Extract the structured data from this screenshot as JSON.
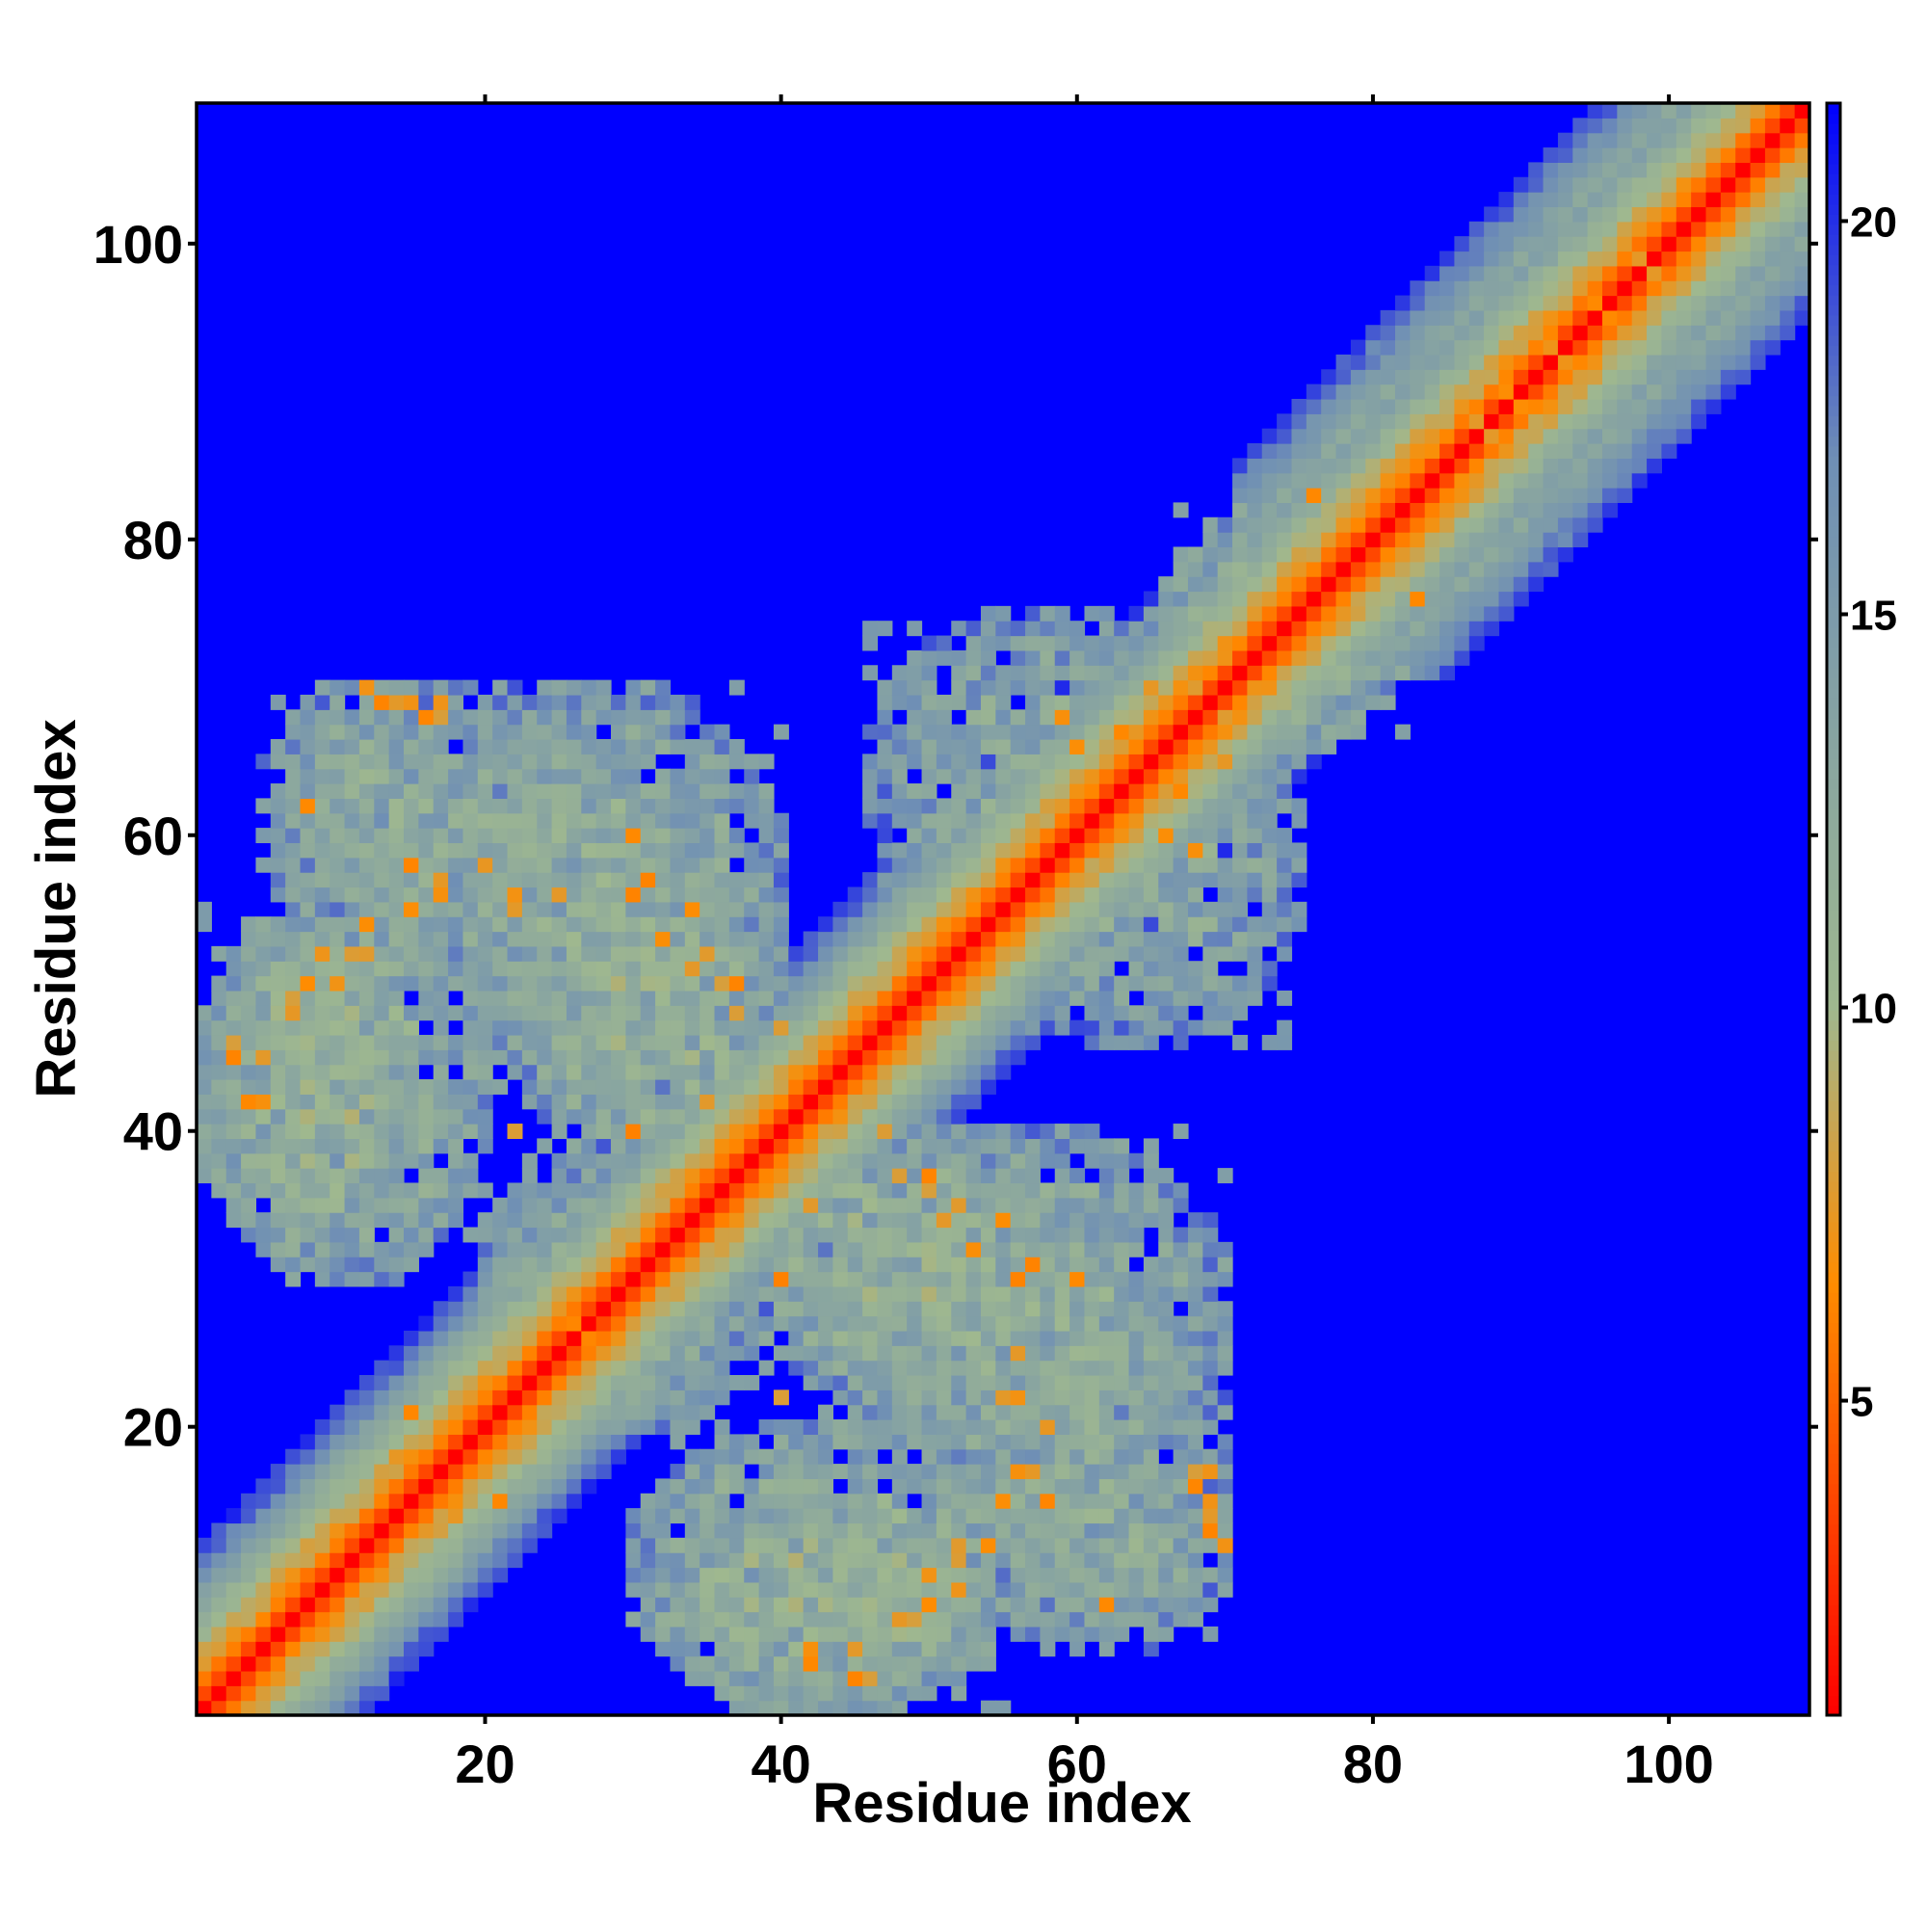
{
  "chart_data": {
    "type": "heatmap",
    "title": "",
    "xlabel": "Residue index",
    "ylabel": "Residue index",
    "xlim": [
      1,
      109
    ],
    "ylim": [
      1,
      109
    ],
    "x_ticks": [
      20,
      40,
      60,
      80,
      100
    ],
    "y_ticks": [
      20,
      40,
      60,
      80,
      100
    ],
    "n_residues": 109,
    "colorbar": {
      "range": [
        1,
        21.5
      ],
      "ticks": [
        5,
        10,
        15,
        20
      ],
      "colors": [
        "#ff0000",
        "#ff8c00",
        "#9fb88f",
        "#6f8fb5",
        "#0000ff"
      ],
      "stops": [
        1,
        6.5,
        10,
        17,
        21.5
      ]
    },
    "matrix_description": "Symmetric residue-residue distance map; distances near 1 on the diagonal rising to the 21.5 cap (blue) far from it.",
    "contact_regions": [
      {
        "x": [
          1,
          15
        ],
        "y": [
          34,
          54
        ],
        "value": 12
      },
      {
        "x": [
          5,
          20
        ],
        "y": [
          55,
          70
        ],
        "value": 13
      },
      {
        "x": [
          18,
          40
        ],
        "y": [
          42,
          70
        ],
        "value": 12.5
      },
      {
        "x": [
          20,
          35
        ],
        "y": [
          20,
          38
        ],
        "value": 13
      },
      {
        "x": [
          38,
          58
        ],
        "y": [
          22,
          40
        ],
        "value": 12
      },
      {
        "x": [
          30,
          56
        ],
        "y": [
          1,
          20
        ],
        "value": 12
      },
      {
        "x": [
          48,
          70
        ],
        "y": [
          6,
          30
        ],
        "value": 13
      },
      {
        "x": [
          54,
          75
        ],
        "y": [
          46,
          70
        ],
        "value": 13
      },
      {
        "x": [
          66,
          80
        ],
        "y": [
          66,
          82
        ],
        "value": 12
      }
    ],
    "contact_spots": [
      [
        3,
        45
      ],
      [
        5,
        42
      ],
      [
        7,
        49
      ],
      [
        9,
        52
      ],
      [
        10,
        50
      ],
      [
        12,
        52
      ],
      [
        13,
        69
      ],
      [
        14,
        69
      ],
      [
        16,
        68
      ],
      [
        15,
        55
      ],
      [
        17,
        57
      ],
      [
        12,
        54
      ],
      [
        22,
        56
      ],
      [
        25,
        56
      ],
      [
        30,
        56
      ],
      [
        32,
        53
      ],
      [
        34,
        51
      ],
      [
        37,
        50
      ],
      [
        40,
        47
      ],
      [
        22,
        40
      ],
      [
        30,
        40
      ],
      [
        35,
        42
      ],
      [
        25,
        28
      ],
      [
        27,
        26
      ],
      [
        18,
        14
      ],
      [
        21,
        15
      ],
      [
        42,
        4
      ],
      [
        45,
        5
      ],
      [
        46,
        3
      ],
      [
        48,
        7
      ],
      [
        50,
        8
      ],
      [
        52,
        11
      ],
      [
        56,
        17
      ],
      [
        58,
        15
      ],
      [
        62,
        8
      ],
      [
        48,
        37
      ],
      [
        50,
        36
      ],
      [
        52,
        35
      ],
      [
        55,
        34
      ],
      [
        57,
        31
      ],
      [
        60,
        30
      ],
      [
        55,
        22
      ],
      [
        58,
        20
      ],
      [
        68,
        17
      ],
      [
        69,
        17
      ],
      [
        69,
        15
      ],
      [
        70,
        12
      ],
      [
        63,
        67
      ],
      [
        65,
        62
      ],
      [
        66,
        60
      ],
      [
        68,
        59
      ],
      [
        70,
        68
      ],
      [
        72,
        70
      ],
      [
        73,
        71
      ],
      [
        70,
        65
      ],
      [
        83,
        76
      ],
      [
        86,
        84
      ],
      [
        88,
        87
      ],
      [
        90,
        89
      ],
      [
        93,
        92
      ],
      [
        95,
        96
      ],
      [
        99,
        98
      ]
    ]
  }
}
